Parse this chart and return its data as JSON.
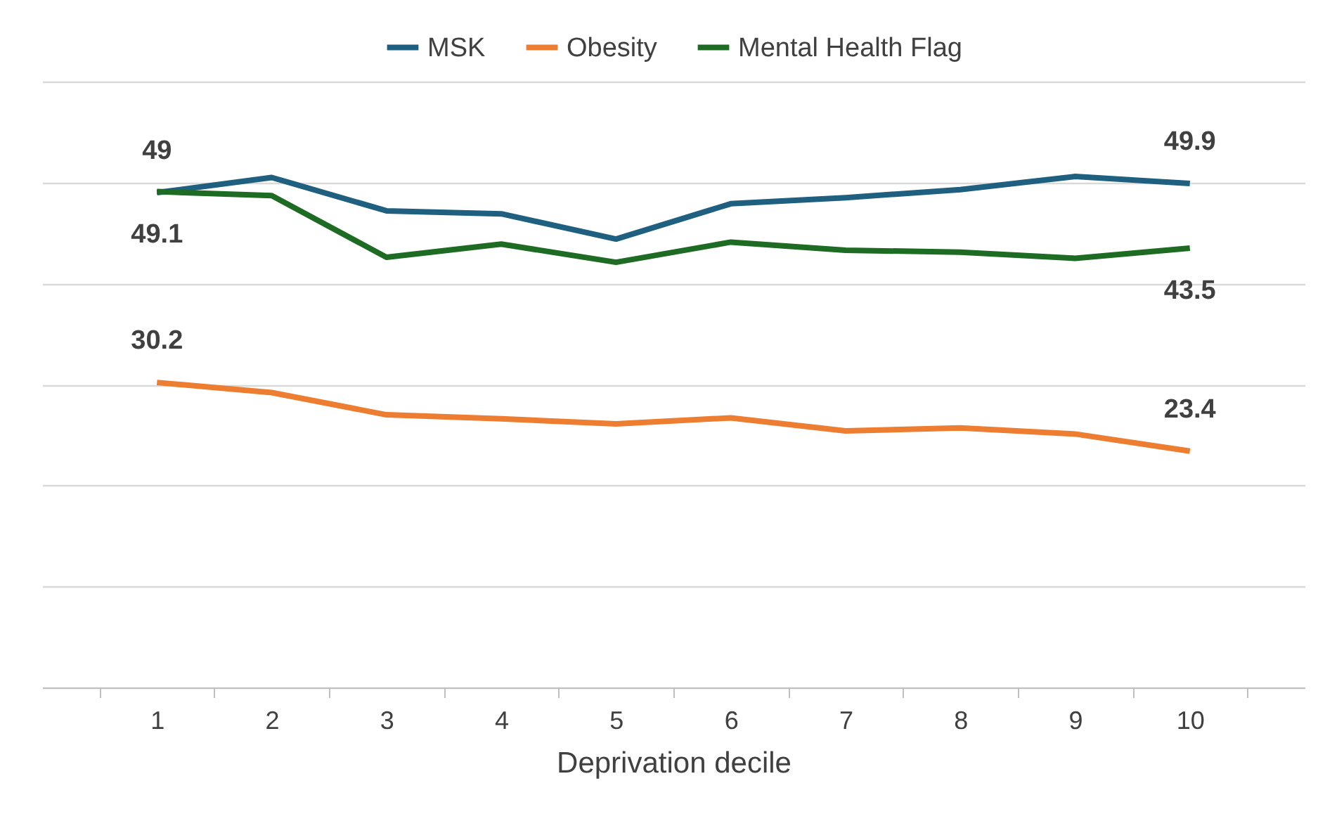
{
  "chart_data": {
    "type": "line",
    "xlabel": "Deprivation decile",
    "categories": [
      "1",
      "2",
      "3",
      "4",
      "5",
      "6",
      "7",
      "8",
      "9",
      "10"
    ],
    "series": [
      {
        "name": "MSK",
        "color": "#1f5f7f",
        "values": [
          49,
          50.5,
          47.2,
          46.9,
          44.4,
          47.9,
          48.5,
          49.3,
          50.6,
          49.9
        ],
        "value_labels": [
          "49",
          null,
          null,
          null,
          null,
          null,
          null,
          null,
          null,
          "49.9"
        ]
      },
      {
        "name": "Obesity",
        "color": "#ed7d31",
        "values": [
          30.2,
          29.2,
          27.0,
          26.6,
          26.1,
          26.7,
          25.4,
          25.7,
          25.1,
          23.4
        ],
        "value_labels": [
          "30.2",
          null,
          null,
          null,
          null,
          null,
          null,
          null,
          null,
          "23.4"
        ]
      },
      {
        "name": "Mental Health Flag",
        "color": "#1e6b24",
        "values": [
          49.1,
          48.7,
          42.6,
          43.9,
          42.1,
          44.1,
          43.3,
          43.1,
          42.5,
          43.5
        ],
        "value_labels": [
          "49.1",
          null,
          null,
          null,
          null,
          null,
          null,
          null,
          null,
          "43.5"
        ]
      }
    ],
    "ylim": [
      0,
      60
    ],
    "yticks": [
      {
        "value": 0,
        "label": null
      },
      {
        "value": 10,
        "label": null
      },
      {
        "value": 20,
        "label": null
      },
      {
        "value": 30,
        "label": null
      },
      {
        "value": 40,
        "label": null
      },
      {
        "value": 50,
        "label": null
      },
      {
        "value": 60,
        "label": null
      }
    ],
    "grid": "y",
    "legend": "top",
    "marker": "none",
    "line_style": "solid",
    "tick_labels": "x"
  }
}
